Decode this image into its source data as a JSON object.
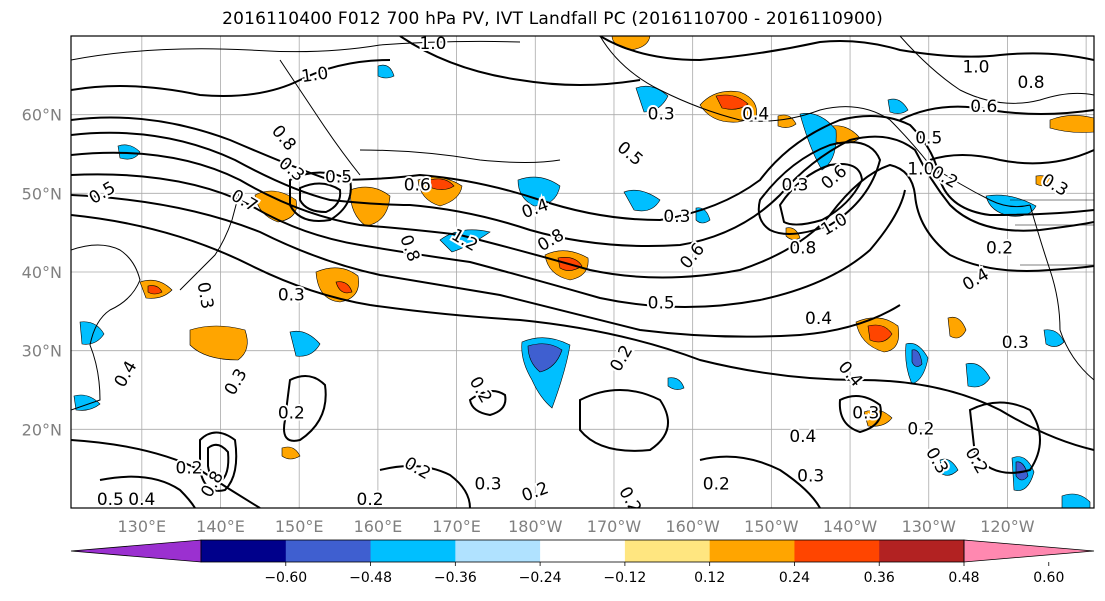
{
  "title": "2016110400 F012 700 hPa PV, IVT Landfall PC (2016110700 - 2016110900)",
  "lat_labels": [
    "60°N",
    "50°N",
    "40°N",
    "30°N",
    "20°N"
  ],
  "lon_labels": [
    "130°E",
    "140°E",
    "150°E",
    "160°E",
    "170°E",
    "180°W",
    "170°W",
    "160°W",
    "150°W",
    "140°W",
    "130°W",
    "120°W"
  ],
  "colorbar": {
    "colors": [
      "#9b30d0",
      "#00008b",
      "#3f5fd0",
      "#00bfff",
      "#b0e2ff",
      "#ffffff",
      "#ffe680",
      "#ffa500",
      "#ff4500",
      "#b22222",
      "#ff88b0"
    ],
    "tick_labels": [
      "−0.60",
      "−0.48",
      "−0.36",
      "−0.24",
      "−0.12",
      "0.12",
      "0.24",
      "0.36",
      "0.48",
      "0.60"
    ]
  },
  "contour_labels": [
    {
      "text": "1.0",
      "lon": 152,
      "lat": 65,
      "rot": -8
    },
    {
      "text": "0.8",
      "lon": 148,
      "lat": 57,
      "rot": 50
    },
    {
      "text": "0.5",
      "lon": 125,
      "lat": 50,
      "rot": -30
    },
    {
      "text": "0.3",
      "lon": 149,
      "lat": 53,
      "rot": 40
    },
    {
      "text": "0.5",
      "lon": 155,
      "lat": 52,
      "rot": 0
    },
    {
      "text": "0.7",
      "lon": 143,
      "lat": 49,
      "rot": 30
    },
    {
      "text": "0.6",
      "lon": 165,
      "lat": 51,
      "rot": 0
    },
    {
      "text": "0.4",
      "lon": 180,
      "lat": 48,
      "rot": -20
    },
    {
      "text": "0.8",
      "lon": 182,
      "lat": 44,
      "rot": -30
    },
    {
      "text": "1.2",
      "lon": 171,
      "lat": 44,
      "rot": 30
    },
    {
      "text": "0.8",
      "lon": 164,
      "lat": 43,
      "rot": 70
    },
    {
      "text": "0.3",
      "lon": 149,
      "lat": 37,
      "rot": 0
    },
    {
      "text": "0.5",
      "lon": 192,
      "lat": 55,
      "rot": 40
    },
    {
      "text": "0.3",
      "lon": 196,
      "lat": 60,
      "rot": 0
    },
    {
      "text": "0.3",
      "lon": 198,
      "lat": 47,
      "rot": 0
    },
    {
      "text": "0.6",
      "lon": 200,
      "lat": 42,
      "rot": -50
    },
    {
      "text": "0.5",
      "lon": 196,
      "lat": 36,
      "rot": 0
    },
    {
      "text": "0.4",
      "lon": 216,
      "lat": 34,
      "rot": 0
    },
    {
      "text": "0.3",
      "lon": 213,
      "lat": 51,
      "rot": 0
    },
    {
      "text": "0.6",
      "lon": 218,
      "lat": 52,
      "rot": -40
    },
    {
      "text": "1.0",
      "lon": 218,
      "lat": 46,
      "rot": -30
    },
    {
      "text": "0.8",
      "lon": 214,
      "lat": 43,
      "rot": 0
    },
    {
      "text": "0.4",
      "lon": 208,
      "lat": 60,
      "rot": 0
    },
    {
      "text": "1.0",
      "lon": 229,
      "lat": 53,
      "rot": 0
    },
    {
      "text": "0.5",
      "lon": 230,
      "lat": 57,
      "rot": 0
    },
    {
      "text": "0.6",
      "lon": 237,
      "lat": 61,
      "rot": 0
    },
    {
      "text": "0.8",
      "lon": 243,
      "lat": 64,
      "rot": 0
    },
    {
      "text": "1.0",
      "lon": 236,
      "lat": 66,
      "rot": 0
    },
    {
      "text": "0.2",
      "lon": 232,
      "lat": 52,
      "rot": 30
    },
    {
      "text": "0.3",
      "lon": 246,
      "lat": 51,
      "rot": 30
    },
    {
      "text": "0.2",
      "lon": 239,
      "lat": 43,
      "rot": 0
    },
    {
      "text": "0.4",
      "lon": 236,
      "lat": 39,
      "rot": -30
    },
    {
      "text": "0.3",
      "lon": 241,
      "lat": 31,
      "rot": 0
    },
    {
      "text": "0.4",
      "lon": 220,
      "lat": 27,
      "rot": 50
    },
    {
      "text": "0.3",
      "lon": 222,
      "lat": 22,
      "rot": 0
    },
    {
      "text": "0.2",
      "lon": 229,
      "lat": 20,
      "rot": 0
    },
    {
      "text": "0.4",
      "lon": 214,
      "lat": 19,
      "rot": 0
    },
    {
      "text": "0.3",
      "lon": 215,
      "lat": 14,
      "rot": 0
    },
    {
      "text": "0.2",
      "lon": 236,
      "lat": 16,
      "rot": 60
    },
    {
      "text": "0.3",
      "lon": 231,
      "lat": 16,
      "rot": 60
    },
    {
      "text": "0.2",
      "lon": 203,
      "lat": 13,
      "rot": 0
    },
    {
      "text": "0.2",
      "lon": 192,
      "lat": 11,
      "rot": 60
    },
    {
      "text": "0.2",
      "lon": 180,
      "lat": 12,
      "rot": -20
    },
    {
      "text": "0.3",
      "lon": 174,
      "lat": 13,
      "rot": 0
    },
    {
      "text": "0.2",
      "lon": 165,
      "lat": 15,
      "rot": 30
    },
    {
      "text": "0.2",
      "lon": 173,
      "lat": 25,
      "rot": 60
    },
    {
      "text": "0.2",
      "lon": 191,
      "lat": 29,
      "rot": -60
    },
    {
      "text": "0.4",
      "lon": 128,
      "lat": 27,
      "rot": -60
    },
    {
      "text": "0.3",
      "lon": 142,
      "lat": 26,
      "rot": -60
    },
    {
      "text": "0.2",
      "lon": 149,
      "lat": 22,
      "rot": 0
    },
    {
      "text": "0.2",
      "lon": 136,
      "lat": 15,
      "rot": 0
    },
    {
      "text": "0.5",
      "lon": 126,
      "lat": 11,
      "rot": 0
    },
    {
      "text": "0.4",
      "lon": 130,
      "lat": 11,
      "rot": 0
    },
    {
      "text": "0.8",
      "lon": 139,
      "lat": 13,
      "rot": -60
    },
    {
      "text": "0.3",
      "lon": 138,
      "lat": 37,
      "rot": 80
    },
    {
      "text": "0.2",
      "lon": 159,
      "lat": 11,
      "rot": 0
    },
    {
      "text": "1.0",
      "lon": 167,
      "lat": 69,
      "rot": 0
    }
  ]
}
